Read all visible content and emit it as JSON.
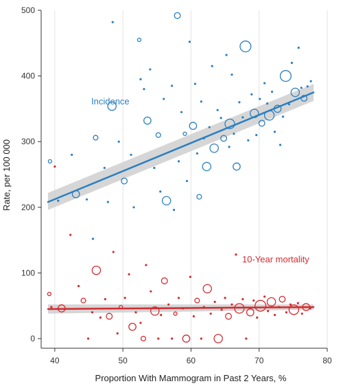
{
  "chart_data": {
    "type": "scatter",
    "xlabel": "Proportion With Mammogram in Past 2 Years, %",
    "ylabel": "Rate, per 100 000",
    "xlim": [
      38,
      80
    ],
    "ylim": [
      0,
      500
    ],
    "x_ticks": [
      "40",
      "50",
      "60",
      "70",
      "80"
    ],
    "y_ticks": [
      "0",
      "100",
      "200",
      "300",
      "400",
      "500"
    ],
    "grid": "vertical",
    "series": [
      {
        "name": "Incidence",
        "color": "#2a7fc1",
        "fit": {
          "x": [
            39,
            78
          ],
          "y": [
            208,
            375
          ],
          "ci_low": [
            196,
            362
          ],
          "ci_high": [
            222,
            388
          ]
        },
        "points": [
          [
            39.3,
            270
          ],
          [
            40.5,
            210
          ],
          [
            42.5,
            280
          ],
          [
            43.1,
            220
          ],
          [
            44.7,
            212
          ],
          [
            45.6,
            152
          ],
          [
            46.0,
            306
          ],
          [
            47.3,
            260
          ],
          [
            47.8,
            208
          ],
          [
            48.4,
            354
          ],
          [
            48.5,
            482
          ],
          [
            49.4,
            300
          ],
          [
            50.2,
            240
          ],
          [
            51.2,
            280
          ],
          [
            51.6,
            200
          ],
          [
            52.4,
            455
          ],
          [
            52.6,
            395
          ],
          [
            53.1,
            380
          ],
          [
            53.6,
            332
          ],
          [
            54.0,
            410
          ],
          [
            54.6,
            260
          ],
          [
            55.2,
            310
          ],
          [
            55.5,
            224
          ],
          [
            56.0,
            365
          ],
          [
            56.4,
            210
          ],
          [
            57.2,
            385
          ],
          [
            57.5,
            196
          ],
          [
            58.0,
            492
          ],
          [
            58.2,
            270
          ],
          [
            58.6,
            345
          ],
          [
            59.1,
            312
          ],
          [
            59.4,
            240
          ],
          [
            59.8,
            452
          ],
          [
            60.3,
            324
          ],
          [
            60.6,
            388
          ],
          [
            60.9,
            282
          ],
          [
            61.2,
            216
          ],
          [
            61.5,
            361
          ],
          [
            61.9,
            305
          ],
          [
            62.3,
            262
          ],
          [
            62.7,
            322
          ],
          [
            63.1,
            415
          ],
          [
            63.4,
            290
          ],
          [
            63.9,
            348
          ],
          [
            64.4,
            336
          ],
          [
            64.8,
            305
          ],
          [
            65.2,
            432
          ],
          [
            65.6,
            292
          ],
          [
            65.7,
            327
          ],
          [
            66.0,
            402
          ],
          [
            66.3,
            312
          ],
          [
            66.7,
            262
          ],
          [
            67.1,
            360
          ],
          [
            67.6,
            337
          ],
          [
            68.0,
            445
          ],
          [
            68.4,
            302
          ],
          [
            68.9,
            372
          ],
          [
            69.3,
            343
          ],
          [
            69.6,
            310
          ],
          [
            70.1,
            365
          ],
          [
            70.4,
            328
          ],
          [
            70.8,
            389
          ],
          [
            71.2,
            358
          ],
          [
            71.5,
            340
          ],
          [
            71.9,
            376
          ],
          [
            72.3,
            315
          ],
          [
            72.7,
            350
          ],
          [
            73.1,
            295
          ],
          [
            73.5,
            338
          ],
          [
            73.9,
            400
          ],
          [
            74.4,
            357
          ],
          [
            74.8,
            420
          ],
          [
            75.3,
            375
          ],
          [
            75.8,
            443
          ],
          [
            76.2,
            382
          ],
          [
            76.6,
            366
          ],
          [
            77.1,
            384
          ],
          [
            77.6,
            392
          ]
        ]
      },
      {
        "name": "10-Year mortality",
        "color": "#d42a2f",
        "fit": {
          "x": [
            39,
            78
          ],
          "y": [
            45,
            48
          ],
          "ci_low": [
            38,
            44
          ],
          "ci_high": [
            52,
            52
          ]
        },
        "points": [
          [
            39.2,
            68
          ],
          [
            39.5,
            48
          ],
          [
            40.0,
            262
          ],
          [
            41.0,
            46
          ],
          [
            42.3,
            158
          ],
          [
            43.5,
            80
          ],
          [
            44.2,
            58
          ],
          [
            44.9,
            0
          ],
          [
            45.5,
            40
          ],
          [
            46.1,
            104
          ],
          [
            46.7,
            32
          ],
          [
            47.4,
            60
          ],
          [
            48.0,
            34
          ],
          [
            48.6,
            132
          ],
          [
            49.2,
            8
          ],
          [
            49.7,
            48
          ],
          [
            50.3,
            62
          ],
          [
            50.9,
            98
          ],
          [
            51.4,
            18
          ],
          [
            51.9,
            40
          ],
          [
            52.6,
            24
          ],
          [
            53.0,
            0
          ],
          [
            53.4,
            112
          ],
          [
            54.1,
            72
          ],
          [
            54.7,
            42
          ],
          [
            55.2,
            0
          ],
          [
            55.6,
            36
          ],
          [
            56.1,
            88
          ],
          [
            56.7,
            52
          ],
          [
            57.2,
            0
          ],
          [
            57.7,
            38
          ],
          [
            58.2,
            62
          ],
          [
            58.8,
            46
          ],
          [
            59.3,
            0
          ],
          [
            59.9,
            94
          ],
          [
            60.4,
            34
          ],
          [
            60.9,
            58
          ],
          [
            61.5,
            0
          ],
          [
            61.9,
            48
          ],
          [
            62.4,
            76
          ],
          [
            62.9,
            38
          ],
          [
            63.5,
            56
          ],
          [
            64.0,
            0
          ],
          [
            64.5,
            44
          ],
          [
            65.0,
            62
          ],
          [
            65.5,
            34
          ],
          [
            66.0,
            52
          ],
          [
            66.6,
            128
          ],
          [
            67.1,
            46
          ],
          [
            67.6,
            60
          ],
          [
            68.1,
            0
          ],
          [
            68.7,
            40
          ],
          [
            69.2,
            58
          ],
          [
            69.7,
            32
          ],
          [
            70.2,
            50
          ],
          [
            70.8,
            64
          ],
          [
            71.3,
            42
          ],
          [
            71.8,
            56
          ],
          [
            72.3,
            36
          ],
          [
            72.9,
            48
          ],
          [
            73.4,
            60
          ],
          [
            74.0,
            40
          ],
          [
            74.6,
            52
          ],
          [
            75.1,
            44
          ],
          [
            75.7,
            54
          ],
          [
            76.3,
            38
          ],
          [
            76.9,
            48
          ],
          [
            77.5,
            46
          ]
        ]
      }
    ]
  }
}
